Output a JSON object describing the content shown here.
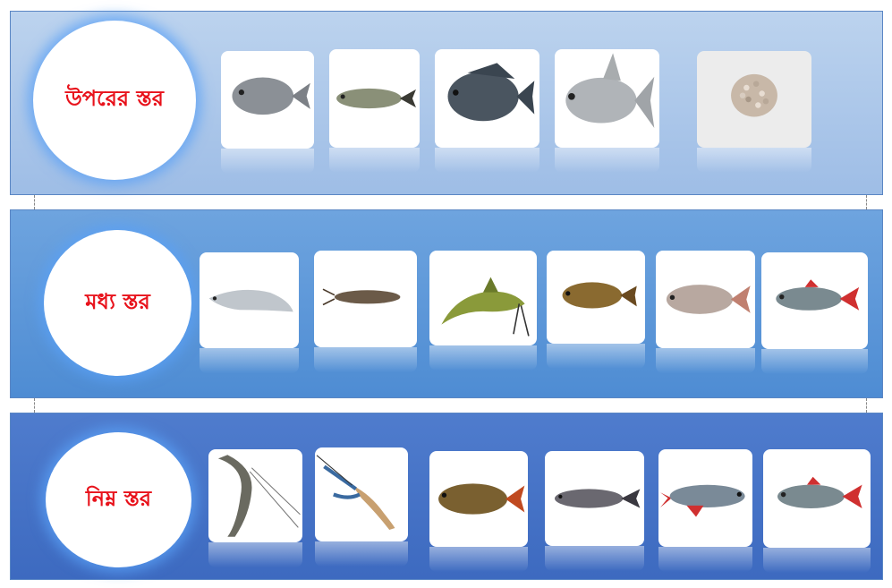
{
  "layers": [
    {
      "label": "উপরের স্তর",
      "items": [
        {
          "icon": "fish-carp-icon",
          "color": "#8b9096"
        },
        {
          "icon": "fish-silver-carp-icon",
          "color": "#8a9078"
        },
        {
          "icon": "fish-tilapia-icon",
          "color": "#4a5560"
        },
        {
          "icon": "fish-silver-barb-icon",
          "color": "#b0b4b8"
        },
        {
          "icon": "fish-feed-pellets-icon",
          "color": "#c8b8a8"
        }
      ]
    },
    {
      "label": "মধ্য স্তর",
      "items": [
        {
          "icon": "fish-knifefish-icon",
          "color": "#c0c6cc"
        },
        {
          "icon": "fish-catfish-small-icon",
          "color": "#6b5a48"
        },
        {
          "icon": "fish-catfish-icon",
          "color": "#8a9a3a"
        },
        {
          "icon": "fish-climbing-perch-icon",
          "color": "#8a6a30"
        },
        {
          "icon": "fish-rohu-icon",
          "color": "#b8a8a0"
        },
        {
          "icon": "fish-red-fin-icon",
          "color": "#7a8a90"
        }
      ]
    },
    {
      "label": "নিম্ন স্তর",
      "items": [
        {
          "icon": "shrimp-icon",
          "color": "#6a6a60"
        },
        {
          "icon": "prawn-blue-claw-icon",
          "color": "#3a6aa0"
        },
        {
          "icon": "fish-common-carp-icon",
          "color": "#7a6030"
        },
        {
          "icon": "fish-mrigal-icon",
          "color": "#6a6870"
        },
        {
          "icon": "fish-pangasius-icon",
          "color": "#7a8a98"
        },
        {
          "icon": "fish-red-fin-icon",
          "color": "#7a8a90"
        }
      ]
    }
  ]
}
